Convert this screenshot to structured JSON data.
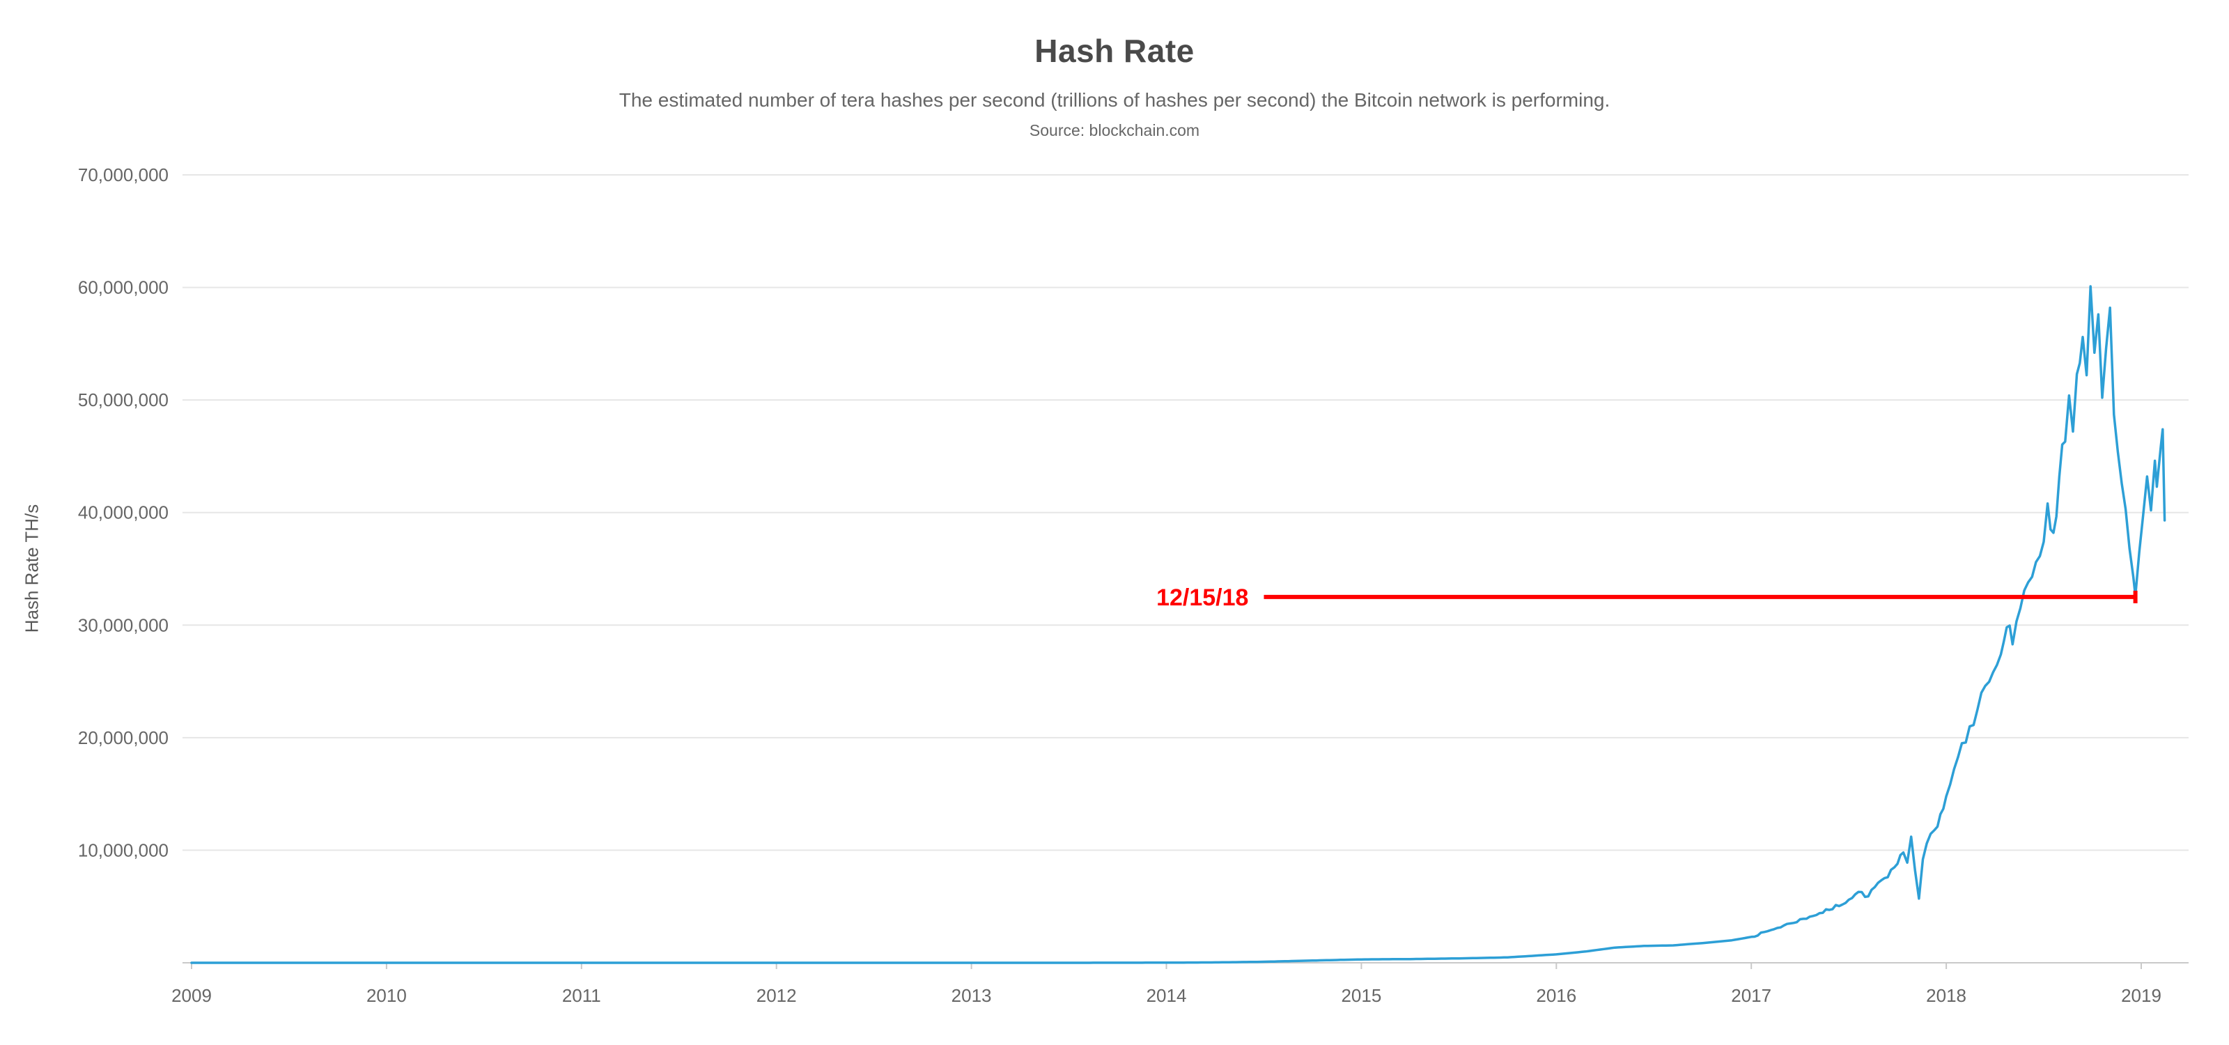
{
  "chart_data": {
    "type": "line",
    "title": "Hash Rate",
    "subtitle": "The estimated number of tera hashes per second (trillions of hashes per second) the Bitcoin network is performing.",
    "source": "Source: blockchain.com",
    "xlabel": "",
    "ylabel": "Hash Rate TH/s",
    "xlim": [
      2009,
      2019.25
    ],
    "ylim": [
      0,
      70000000
    ],
    "x_ticks": [
      2009,
      2010,
      2011,
      2012,
      2013,
      2014,
      2015,
      2016,
      2017,
      2018,
      2019
    ],
    "y_ticks": [
      10000000,
      20000000,
      30000000,
      40000000,
      50000000,
      60000000,
      70000000
    ],
    "grid": true,
    "legend": "none",
    "colors": {
      "line": "#2D9FD6",
      "annotation": "#FF0000",
      "grid": "#E6E6E6",
      "axis": "#C9C9C9",
      "tick_text": "#666666",
      "title_text": "#4A4A4A"
    },
    "annotation": {
      "label": "12/15/18",
      "value": 32500000,
      "x_start_year": 2014.5,
      "x_end_year": 2018.97
    },
    "series": [
      {
        "name": "Hash Rate (TH/s)",
        "points": [
          [
            2009.0,
            0
          ],
          [
            2010.0,
            10
          ],
          [
            2011.0,
            8
          ],
          [
            2011.5,
            13
          ],
          [
            2012.0,
            10
          ],
          [
            2013.0,
            30
          ],
          [
            2013.5,
            400
          ],
          [
            2014.0,
            12000
          ],
          [
            2014.25,
            35000
          ],
          [
            2014.5,
            90000
          ],
          [
            2014.75,
            200000
          ],
          [
            2015.0,
            300000
          ],
          [
            2015.25,
            330000
          ],
          [
            2015.5,
            390000
          ],
          [
            2015.75,
            480000
          ],
          [
            2016.0,
            750000
          ],
          [
            2016.15,
            1000000
          ],
          [
            2016.3,
            1350000
          ],
          [
            2016.45,
            1500000
          ],
          [
            2016.6,
            1550000
          ],
          [
            2016.75,
            1750000
          ],
          [
            2016.9,
            2000000
          ],
          [
            2017.0,
            2300000
          ],
          [
            2017.1,
            2900000
          ],
          [
            2017.2,
            3500000
          ],
          [
            2017.3,
            4100000
          ],
          [
            2017.4,
            4700000
          ],
          [
            2017.5,
            5600000
          ],
          [
            2017.55,
            6300000
          ],
          [
            2017.6,
            5900000
          ],
          [
            2017.65,
            7100000
          ],
          [
            2017.7,
            7600000
          ],
          [
            2017.75,
            8800000
          ],
          [
            2017.78,
            9800000
          ],
          [
            2017.8,
            8900000
          ],
          [
            2017.82,
            11200000
          ],
          [
            2017.84,
            8200000
          ],
          [
            2017.86,
            5700000
          ],
          [
            2017.88,
            9200000
          ],
          [
            2017.9,
            10600000
          ],
          [
            2017.94,
            11800000
          ],
          [
            2017.97,
            13200000
          ],
          [
            2018.0,
            14800000
          ],
          [
            2018.04,
            17200000
          ],
          [
            2018.08,
            19500000
          ],
          [
            2018.12,
            21000000
          ],
          [
            2018.16,
            22500000
          ],
          [
            2018.2,
            24600000
          ],
          [
            2018.24,
            25800000
          ],
          [
            2018.28,
            27400000
          ],
          [
            2018.31,
            29800000
          ],
          [
            2018.34,
            28300000
          ],
          [
            2018.38,
            31500000
          ],
          [
            2018.42,
            33800000
          ],
          [
            2018.46,
            35600000
          ],
          [
            2018.5,
            37400000
          ],
          [
            2018.52,
            40800000
          ],
          [
            2018.55,
            38200000
          ],
          [
            2018.58,
            43200000
          ],
          [
            2018.61,
            46300000
          ],
          [
            2018.63,
            50400000
          ],
          [
            2018.65,
            47200000
          ],
          [
            2018.67,
            52300000
          ],
          [
            2018.7,
            55600000
          ],
          [
            2018.72,
            52200000
          ],
          [
            2018.74,
            60100000
          ],
          [
            2018.76,
            54200000
          ],
          [
            2018.78,
            57600000
          ],
          [
            2018.8,
            50200000
          ],
          [
            2018.82,
            54600000
          ],
          [
            2018.84,
            58200000
          ],
          [
            2018.86,
            48700000
          ],
          [
            2018.88,
            45400000
          ],
          [
            2018.9,
            42600000
          ],
          [
            2018.92,
            40300000
          ],
          [
            2018.94,
            36800000
          ],
          [
            2018.96,
            34200000
          ],
          [
            2018.97,
            32600000
          ],
          [
            2018.99,
            36500000
          ],
          [
            2019.01,
            39800000
          ],
          [
            2019.03,
            43200000
          ],
          [
            2019.05,
            40200000
          ],
          [
            2019.07,
            44600000
          ],
          [
            2019.08,
            42300000
          ],
          [
            2019.1,
            45800000
          ],
          [
            2019.11,
            47400000
          ],
          [
            2019.12,
            39300000
          ]
        ]
      }
    ]
  }
}
